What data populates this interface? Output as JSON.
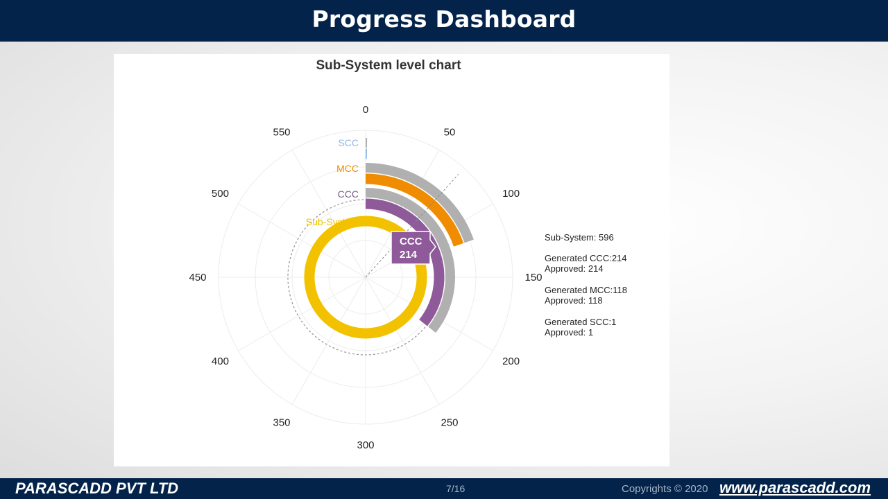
{
  "header": {
    "title": "Progress Dashboard"
  },
  "footer": {
    "company": "PARASCADD PVT LTD",
    "page": "7/16",
    "copyright": "Copyrights © 2020",
    "website": "www.parascadd.com"
  },
  "chart_data": {
    "type": "radial-bar",
    "title": "Sub-System level chart",
    "axis": {
      "min": 0,
      "max": 600,
      "ticks": [
        0,
        50,
        100,
        150,
        200,
        250,
        300,
        350,
        400,
        450,
        500,
        550
      ]
    },
    "series": [
      {
        "name": "SCC",
        "generated": 1,
        "approved": 1,
        "color": "#8fb9e6",
        "generated_color": "#b0b0b0"
      },
      {
        "name": "MCC",
        "generated": 118,
        "approved": 118,
        "color": "#f08c00",
        "generated_color": "#b0b0b0"
      },
      {
        "name": "CCC",
        "generated": 214,
        "approved": 214,
        "color": "#8e5a9a",
        "generated_color": "#b0b0b0"
      },
      {
        "name": "Sub-System",
        "value": 596,
        "color": "#f2c200"
      }
    ],
    "legend": [
      {
        "line1": "Sub-System: 596"
      },
      {
        "line1": "Generated CCC:214",
        "line2": "Approved: 214"
      },
      {
        "line1": "Generated MCC:118",
        "line2": "Approved: 118"
      },
      {
        "line1": "Generated SCC:1",
        "line2": "Approved: 1"
      }
    ],
    "tooltip": {
      "series": "CCC",
      "value": "214"
    },
    "hover_value": 70,
    "legend_position": "right"
  }
}
